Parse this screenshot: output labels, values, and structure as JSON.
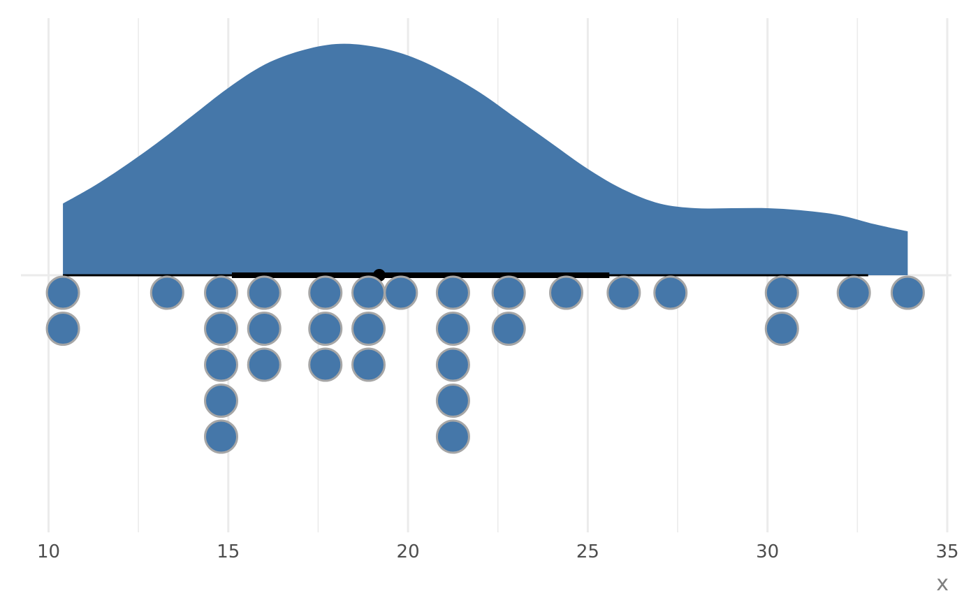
{
  "chart_data": {
    "type": "dotplot-halfeye",
    "xlabel": "x",
    "xlim": [
      10,
      35
    ],
    "x_ticks": [
      10,
      15,
      20,
      25,
      30,
      35
    ],
    "x_minor_ticks": [
      12.5,
      17.5,
      22.5,
      27.5,
      32.5
    ],
    "grid": true,
    "colors": {
      "fill": "#4577a9",
      "dot_stroke": "#a6a6a6",
      "interval": "#000000",
      "grid": "#ebebeb",
      "text": "#4d4d4d"
    },
    "density": {
      "x": [
        10.4,
        11.2,
        12,
        13,
        14,
        15,
        16,
        17,
        18,
        19,
        20,
        21,
        22,
        23,
        24,
        25,
        26,
        27,
        28,
        29,
        30,
        31,
        32,
        33,
        33.9
      ],
      "y": [
        0.31,
        0.38,
        0.46,
        0.57,
        0.69,
        0.81,
        0.91,
        0.97,
        1.0,
        0.99,
        0.95,
        0.88,
        0.79,
        0.68,
        0.57,
        0.46,
        0.37,
        0.31,
        0.29,
        0.29,
        0.29,
        0.28,
        0.26,
        0.22,
        0.19
      ]
    },
    "interval": {
      "point": 19.2,
      "inner": [
        15.1,
        25.6
      ],
      "outer": [
        10.4,
        32.8
      ]
    },
    "dots": [
      {
        "x": 10.4,
        "count": 2
      },
      {
        "x": 13.3,
        "count": 1
      },
      {
        "x": 14.8,
        "count": 5
      },
      {
        "x": 16.0,
        "count": 3
      },
      {
        "x": 17.7,
        "count": 3
      },
      {
        "x": 18.9,
        "count": 3
      },
      {
        "x": 19.8,
        "count": 1
      },
      {
        "x": 21.25,
        "count": 5
      },
      {
        "x": 22.8,
        "count": 2
      },
      {
        "x": 24.4,
        "count": 1
      },
      {
        "x": 26.0,
        "count": 1
      },
      {
        "x": 27.3,
        "count": 1
      },
      {
        "x": 30.4,
        "count": 2
      },
      {
        "x": 32.4,
        "count": 1
      },
      {
        "x": 33.9,
        "count": 1
      }
    ]
  }
}
